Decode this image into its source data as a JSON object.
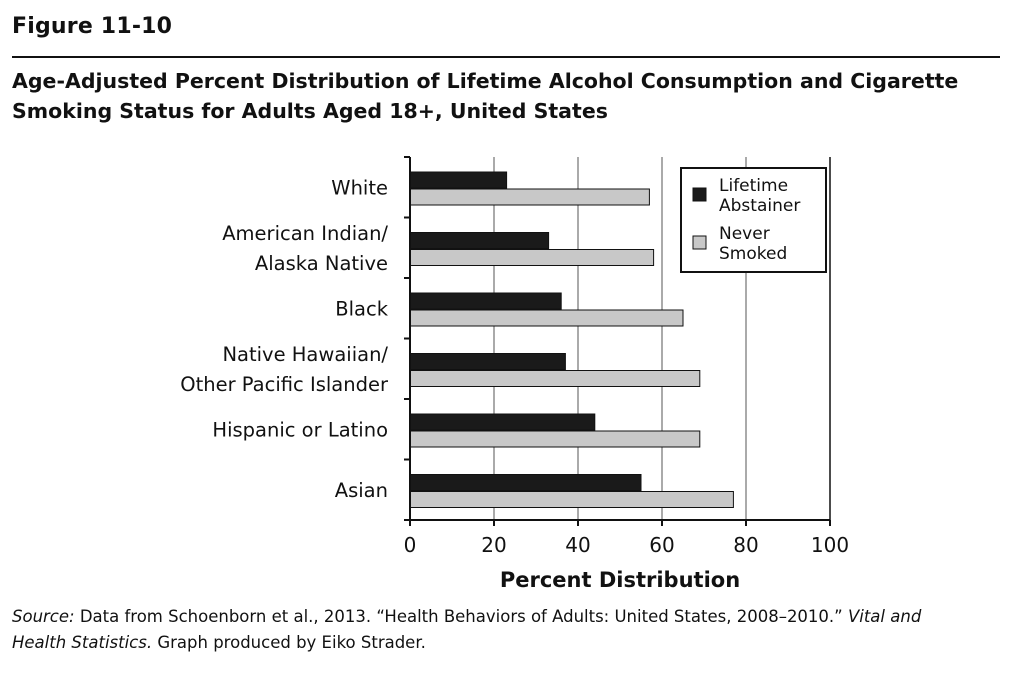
{
  "figure_label": "Figure 11-10",
  "title_line1": "Age-Adjusted Percent Distribution of Lifetime Alcohol Consumption and Cigarette",
  "title_line2": "Smoking Status for Adults Aged 18+, United States",
  "source": {
    "prefix": "Source:",
    "line1_text": " Data from Schoenborn et al., 2013. “Health Behaviors of Adults: United States, 2008–2010.” ",
    "line1_italic": "Vital and",
    "line2_italic": "Health Statistics.",
    "line2_text": " Graph produced by Eiko Strader."
  },
  "colors": {
    "abstainer": "#1a1a1a",
    "never_smoked": "#c8c8c8",
    "bar_stroke": "#111111",
    "grid": "#555555"
  },
  "chart_data": {
    "type": "bar",
    "orientation": "horizontal",
    "categories": [
      [
        "White"
      ],
      [
        "American Indian/",
        "Alaska Native"
      ],
      [
        "Black"
      ],
      [
        "Native Hawaiian/",
        "Other Pacific  Islander"
      ],
      [
        "Hispanic or Latino"
      ],
      [
        "Asian"
      ]
    ],
    "series": [
      {
        "name": "Lifetime Abstainer",
        "legend_lines": [
          "Lifetime",
          "Abstainer"
        ],
        "values": [
          23,
          33,
          36,
          37,
          44,
          55
        ]
      },
      {
        "name": "Never Smoked",
        "legend_lines": [
          "Never",
          "Smoked"
        ],
        "values": [
          57,
          58,
          65,
          69,
          69,
          77
        ]
      }
    ],
    "xlabel": "Percent Distribution",
    "xlim": [
      0,
      100
    ],
    "xticks": [
      0,
      20,
      40,
      60,
      80,
      100
    ],
    "grid": true,
    "legend_position": "top-right"
  }
}
